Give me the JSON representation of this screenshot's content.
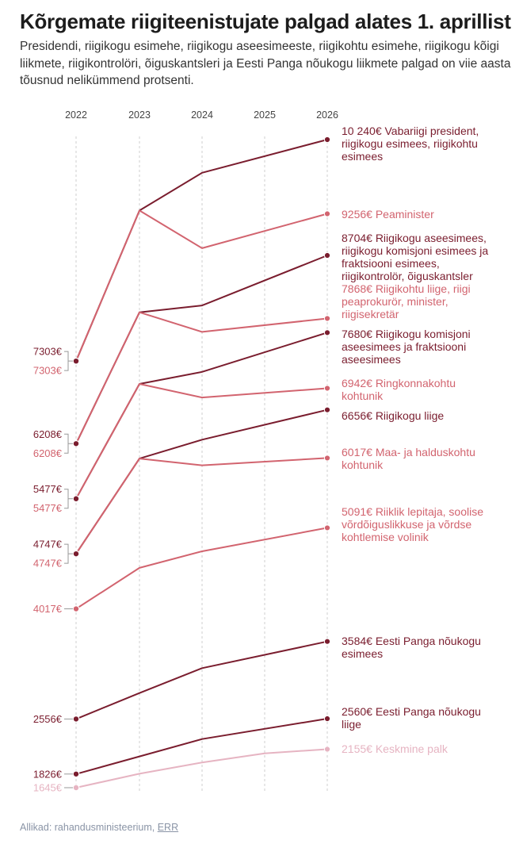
{
  "title": "Kõrgemate riigiteenistujate palgad alates 1. aprillist",
  "subtitle": "Presidendi, riigikogu esimehe, riigikogu aseesimeeste, riigikohtu esimehe, riigikogu kõigi liikmete, riigikontrolöri, õiguskantsleri ja Eesti Panga nõukogu liikmete palgad on viie aasta tõusnud nelikümmend protsenti.",
  "source": {
    "label": "Allikad: rahandusministeerium, ",
    "link": "ERR"
  },
  "colors": {
    "dark": "#7a1d2e",
    "mid": "#d2646f",
    "light": "#e6b4c2",
    "grid": "#cfcfcf",
    "bracket": "#999999"
  },
  "chart_data": {
    "type": "line",
    "title": "Kõrgemate riigiteenistujate palgad alates 1. aprillist",
    "x": [
      "2022",
      "2023",
      "2024",
      "2025",
      "2026"
    ],
    "xlabel": "",
    "ylabel": "",
    "ylim": [
      1600,
      10300
    ],
    "grid": true,
    "series": [
      {
        "name": "Vabariigi president, riigikogu esimees, riigikohtu esimees",
        "color": "dark",
        "values": [
          7303,
          9300,
          9800,
          null,
          10240
        ],
        "start_label": "7303€",
        "end_label": [
          "10 240€ Vabariigi president,",
          "riigikogu esimees, riigikohtu",
          "esimees"
        ]
      },
      {
        "name": "Peaminister",
        "color": "mid",
        "values": [
          7303,
          9300,
          8800,
          null,
          9256
        ],
        "start_label": "7303€",
        "end_label": [
          "9256€ Peaminister"
        ]
      },
      {
        "name": "Riigikogu aseesimees, riigikogu komisjoni esimees ja fraktsiooni esimees, riigikontrolör, õiguskantsler",
        "color": "dark",
        "values": [
          6208,
          7950,
          8040,
          null,
          8704
        ],
        "start_label": "6208€",
        "end_label": [
          "8704€ Riigikogu aseesimees,",
          "riigikogu komisjoni esimees ja",
          "fraktsiooni esimees,",
          "riigikontrolör, õiguskantsler"
        ]
      },
      {
        "name": "Riigikohtu liige, riigi peaprokurör, minister, riigisekretär",
        "color": "mid",
        "values": [
          6208,
          7950,
          7690,
          null,
          7868
        ],
        "start_label": "6208€",
        "end_label": [
          "7868€ Riigikohtu liige, riigi",
          "peaprokurör, minister,",
          "riigisekretär"
        ]
      },
      {
        "name": "Riigikogu komisjoni aseesimees ja fraktsiooni aseesimees",
        "color": "dark",
        "values": [
          5477,
          7000,
          7160,
          null,
          7680
        ],
        "start_label": "5477€",
        "end_label": [
          "7680€ Riigikogu komisjoni",
          "aseesimees ja fraktsiooni",
          "aseesimees"
        ]
      },
      {
        "name": "Ringkonnakohtu kohtunik",
        "color": "mid",
        "values": [
          5477,
          7000,
          6820,
          null,
          6942
        ],
        "start_label": "5477€",
        "end_label": [
          "6942€ Ringkonnakohtu",
          "kohtunik"
        ]
      },
      {
        "name": "Riigikogu liige",
        "color": "dark",
        "values": [
          4747,
          6010,
          6260,
          null,
          6656
        ],
        "start_label": "4747€",
        "end_label": [
          "6656€ Riigikogu liige"
        ]
      },
      {
        "name": "Maa- ja halduskohtu kohtunik",
        "color": "mid",
        "values": [
          4747,
          6010,
          5920,
          null,
          6017
        ],
        "start_label": "4747€",
        "end_label": [
          "6017€ Maa- ja halduskohtu",
          "kohtunik"
        ]
      },
      {
        "name": "Riiklik lepitaja, soolise võrdõiguslikkuse ja võrdse kohtlemise volinik",
        "color": "mid",
        "values": [
          4017,
          4560,
          4780,
          null,
          5091
        ],
        "start_label": "4017€",
        "end_label": [
          "5091€ Riiklik lepitaja, soolise",
          "võrdõiguslikkuse ja võrdse",
          "kohtlemise volinik"
        ]
      },
      {
        "name": "Eesti Panga nõukogu esimees",
        "color": "dark",
        "values": [
          2556,
          2900,
          3230,
          null,
          3584
        ],
        "start_label": "2556€",
        "end_label": [
          "3584€ Eesti Panga nõukogu",
          "esimees"
        ]
      },
      {
        "name": "Eesti Panga nõukogu liige",
        "color": "dark",
        "values": [
          1826,
          2060,
          2290,
          null,
          2560
        ],
        "start_label": "1826€",
        "end_label": [
          "2560€ Eesti Panga nõukogu",
          "liige"
        ]
      },
      {
        "name": "Keskmine palk",
        "color": "light",
        "values": [
          1645,
          1830,
          1980,
          2100,
          2155
        ],
        "start_label": "1645€",
        "end_label": [
          "2155€ Keskmine palk"
        ]
      }
    ]
  }
}
